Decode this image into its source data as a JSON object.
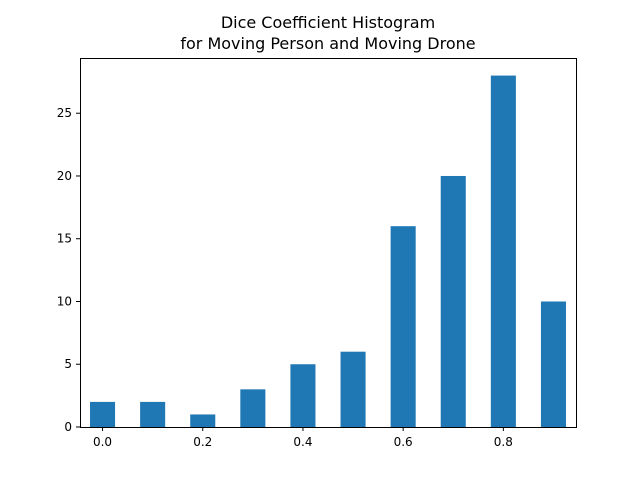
{
  "chart_data": {
    "type": "bar",
    "title": "Dice Coefficient Histogram",
    "subtitle": "for Moving Person and Moving Drone",
    "xlabel": "",
    "ylabel": "",
    "x": [
      0.0,
      0.1,
      0.2,
      0.3,
      0.4,
      0.5,
      0.6,
      0.7,
      0.8,
      0.9
    ],
    "values": [
      2,
      2,
      1,
      3,
      5,
      6,
      16,
      20,
      28,
      10
    ],
    "bar_width": 0.05,
    "xlim": [
      -0.045,
      0.945
    ],
    "ylim": [
      0,
      29.4
    ],
    "xticks": [
      0.0,
      0.2,
      0.4,
      0.6,
      0.8
    ],
    "xtick_labels": [
      "0.0",
      "0.2",
      "0.4",
      "0.6",
      "0.8"
    ],
    "yticks": [
      0,
      5,
      10,
      15,
      20,
      25
    ],
    "ytick_labels": [
      "0",
      "5",
      "10",
      "15",
      "20",
      "25"
    ],
    "bar_color": "#1f77b4",
    "grid": false,
    "legend": "none"
  }
}
